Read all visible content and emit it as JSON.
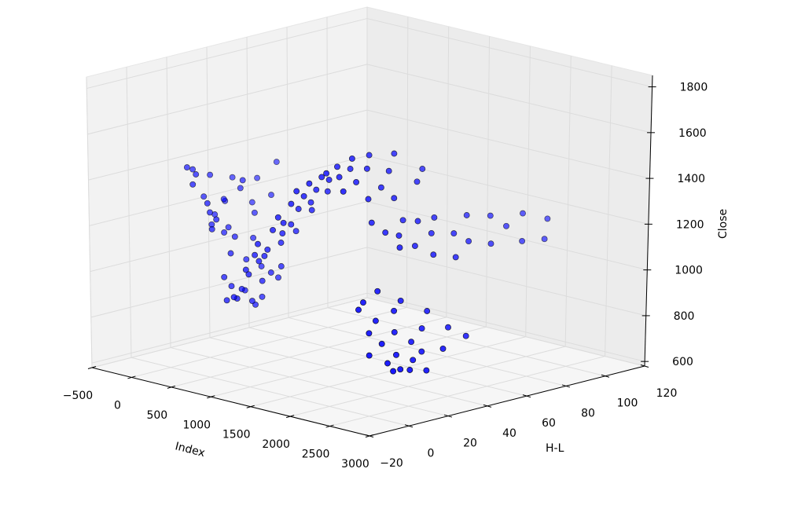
{
  "chart_data": {
    "type": "scatter",
    "projection": "3d",
    "title": "",
    "xlabel": "Index",
    "ylabel": "H-L",
    "zlabel": "Close",
    "xlim": [
      -500,
      3000
    ],
    "ylim": [
      -20,
      120
    ],
    "zlim": [
      580,
      1850
    ],
    "xticks": [
      "-500",
      "0",
      "500",
      "1000",
      "1500",
      "2000",
      "2500",
      "3000"
    ],
    "yticks": [
      "-20",
      "0",
      "20",
      "40",
      "60",
      "80",
      "100",
      "120"
    ],
    "zticks": [
      "600",
      "800",
      "1000",
      "1200",
      "1400",
      "1600",
      "1800"
    ],
    "grid": true,
    "marker_color": "#0000ff",
    "marker_edge_color": "#000000",
    "points_note_columns": [
      "Index",
      "H-L",
      "Close"
    ],
    "points": [
      [
        10,
        12,
        1420
      ],
      [
        25,
        20,
        1380
      ],
      [
        40,
        8,
        1440
      ],
      [
        55,
        30,
        1350
      ],
      [
        70,
        15,
        1300
      ],
      [
        85,
        25,
        1260
      ],
      [
        100,
        10,
        1410
      ],
      [
        115,
        40,
        1330
      ],
      [
        130,
        18,
        1220
      ],
      [
        145,
        22,
        1280
      ],
      [
        160,
        6,
        1380
      ],
      [
        175,
        35,
        1240
      ],
      [
        190,
        14,
        1190
      ],
      [
        205,
        28,
        1320
      ],
      [
        220,
        12,
        1250
      ],
      [
        235,
        45,
        1400
      ],
      [
        250,
        20,
        1170
      ],
      [
        265,
        9,
        1300
      ],
      [
        280,
        32,
        1210
      ],
      [
        295,
        16,
        1160
      ],
      [
        310,
        25,
        1370
      ],
      [
        325,
        11,
        1230
      ],
      [
        340,
        38,
        1280
      ],
      [
        355,
        19,
        1140
      ],
      [
        370,
        7,
        1200
      ],
      [
        385,
        27,
        1120
      ],
      [
        400,
        15,
        1080
      ],
      [
        420,
        22,
        1040
      ],
      [
        440,
        10,
        990
      ],
      [
        460,
        28,
        1000
      ],
      [
        480,
        12,
        950
      ],
      [
        500,
        18,
        920
      ],
      [
        520,
        8,
        900
      ],
      [
        540,
        25,
        880
      ],
      [
        560,
        14,
        940
      ],
      [
        580,
        20,
        860
      ],
      [
        600,
        10,
        910
      ],
      [
        620,
        30,
        960
      ],
      [
        640,
        16,
        890
      ],
      [
        660,
        6,
        930
      ],
      [
        680,
        24,
        1000
      ],
      [
        700,
        12,
        1020
      ],
      [
        720,
        18,
        980
      ],
      [
        740,
        9,
        1050
      ],
      [
        760,
        26,
        1030
      ],
      [
        780,
        14,
        1080
      ],
      [
        800,
        16,
        1100
      ],
      [
        830,
        10,
        1120
      ],
      [
        860,
        22,
        1150
      ],
      [
        890,
        14,
        1140
      ],
      [
        920,
        8,
        1180
      ],
      [
        950,
        26,
        1200
      ],
      [
        980,
        18,
        1210
      ],
      [
        1010,
        12,
        1240
      ],
      [
        1040,
        20,
        1250
      ],
      [
        1070,
        15,
        1270
      ],
      [
        1100,
        28,
        1300
      ],
      [
        1130,
        10,
        1310
      ],
      [
        1160,
        19,
        1330
      ],
      [
        1190,
        24,
        1350
      ],
      [
        1220,
        13,
        1370
      ],
      [
        1250,
        30,
        1390
      ],
      [
        1280,
        17,
        1400
      ],
      [
        1310,
        22,
        1420
      ],
      [
        1340,
        11,
        1440
      ],
      [
        1370,
        26,
        1460
      ],
      [
        1400,
        15,
        1470
      ],
      [
        1430,
        20,
        1490
      ],
      [
        1460,
        33,
        1500
      ],
      [
        1500,
        25,
        1530
      ],
      [
        1520,
        40,
        1550
      ],
      [
        1540,
        18,
        1520
      ],
      [
        1560,
        30,
        1560
      ],
      [
        1580,
        50,
        1540
      ],
      [
        1600,
        22,
        1500
      ],
      [
        1620,
        35,
        1510
      ],
      [
        1640,
        45,
        1480
      ],
      [
        1660,
        28,
        1470
      ],
      [
        1680,
        60,
        1460
      ],
      [
        1700,
        20,
        1450
      ],
      [
        1720,
        38,
        1430
      ],
      [
        1740,
        55,
        1420
      ],
      [
        1760,
        30,
        1400
      ],
      [
        1780,
        42,
        1380
      ],
      [
        1800,
        30,
        1300
      ],
      [
        1815,
        45,
        1280
      ],
      [
        1830,
        60,
        1260
      ],
      [
        1845,
        35,
        1250
      ],
      [
        1860,
        75,
        1240
      ],
      [
        1875,
        50,
        1270
      ],
      [
        1890,
        40,
        1230
      ],
      [
        1905,
        85,
        1220
      ],
      [
        1920,
        55,
        1210
      ],
      [
        1935,
        100,
        1200
      ],
      [
        1950,
        65,
        1190
      ],
      [
        1965,
        45,
        1180
      ],
      [
        1980,
        90,
        1170
      ],
      [
        1995,
        110,
        1160
      ],
      [
        2010,
        70,
        1150
      ],
      [
        2025,
        35,
        1200
      ],
      [
        2040,
        80,
        1120
      ],
      [
        2055,
        95,
        1100
      ],
      [
        2070,
        50,
        1140
      ],
      [
        2085,
        105,
        1090
      ],
      [
        2100,
        60,
        1110
      ],
      [
        2120,
        20,
        1050
      ],
      [
        2140,
        12,
        1020
      ],
      [
        2160,
        30,
        990
      ],
      [
        2180,
        8,
        1000
      ],
      [
        2200,
        25,
        960
      ],
      [
        2220,
        15,
        940
      ],
      [
        2240,
        40,
        930
      ],
      [
        2260,
        10,
        900
      ],
      [
        2280,
        22,
        880
      ],
      [
        2300,
        35,
        870
      ],
      [
        2320,
        14,
        850
      ],
      [
        2340,
        28,
        830
      ],
      [
        2360,
        6,
        820
      ],
      [
        2380,
        45,
        860
      ],
      [
        2400,
        18,
        800
      ],
      [
        2420,
        30,
        790
      ],
      [
        2440,
        12,
        780
      ],
      [
        2460,
        24,
        770
      ],
      [
        2480,
        50,
        820
      ],
      [
        2500,
        16,
        750
      ],
      [
        2520,
        20,
        740
      ],
      [
        2540,
        36,
        800
      ],
      [
        2560,
        10,
        760
      ],
      [
        2580,
        26,
        730
      ]
    ]
  }
}
